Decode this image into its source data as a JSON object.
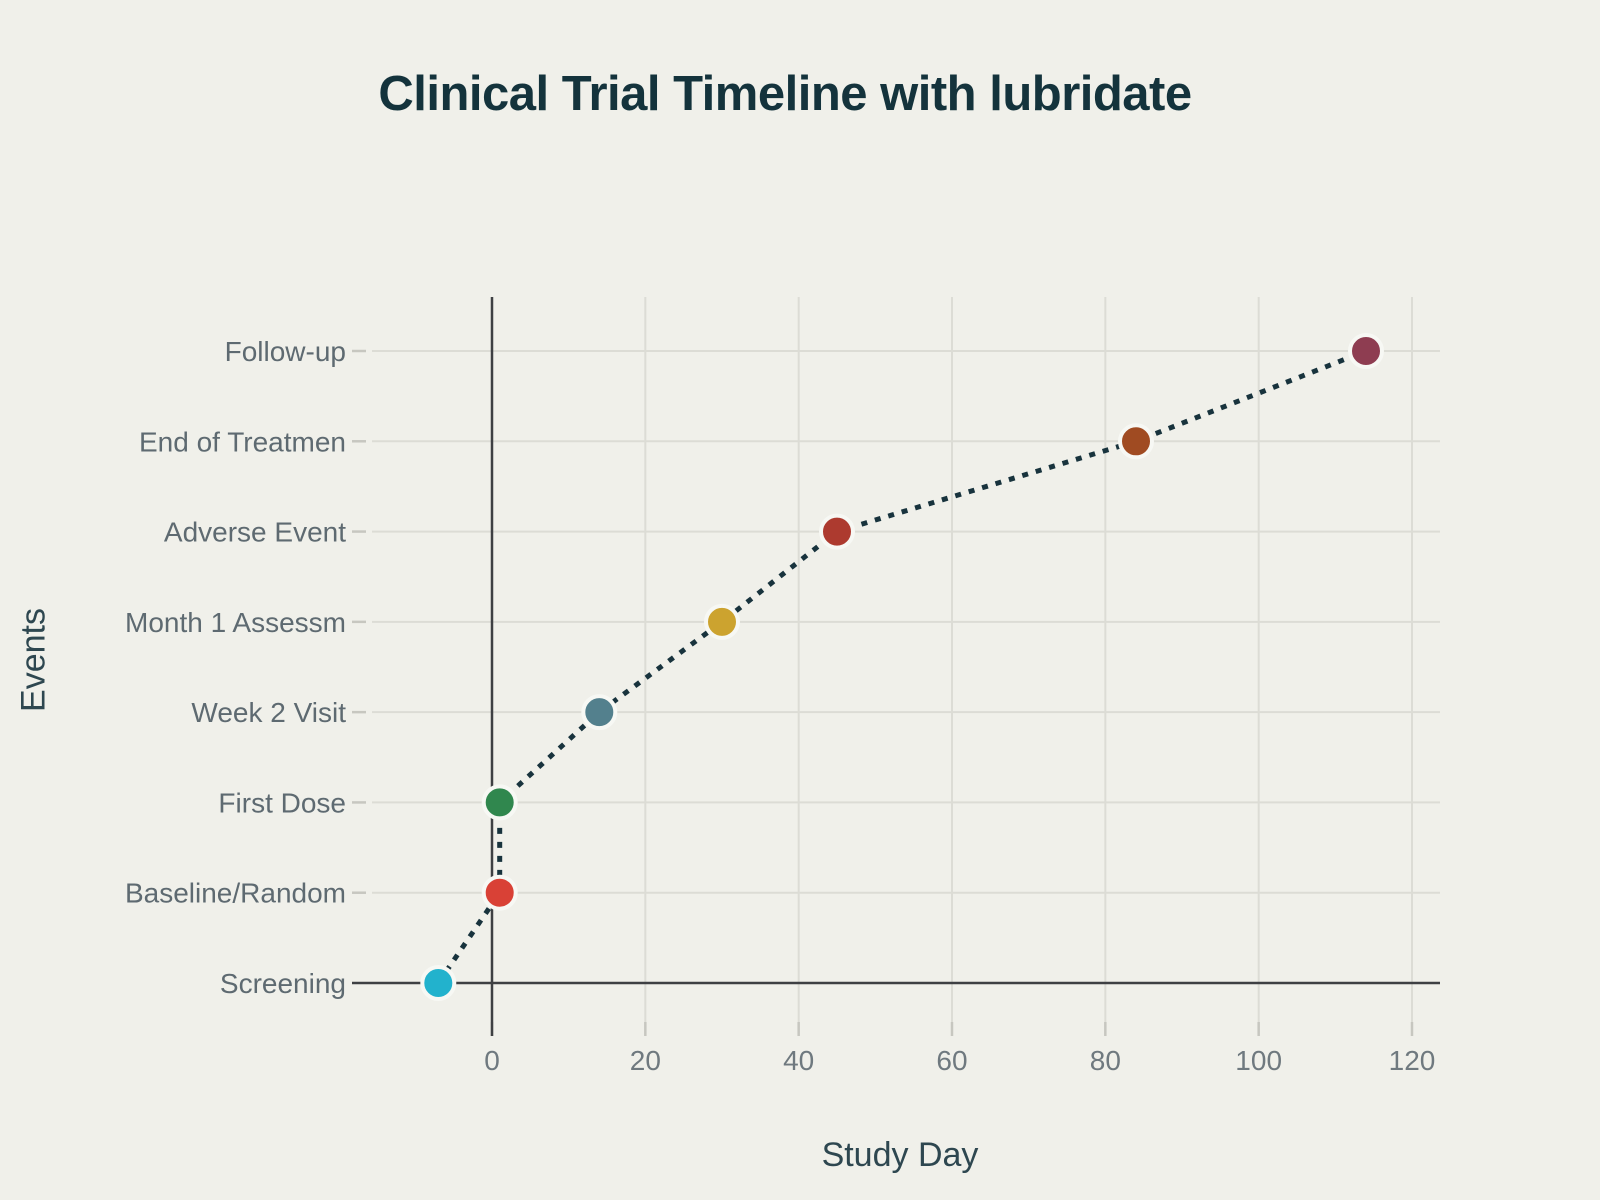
{
  "title": "Clinical Trial Timeline with lubridate",
  "chart_data": {
    "type": "scatter",
    "title": "Clinical Trial Timeline with lubridate",
    "xlabel": "Study Day",
    "ylabel": "Events",
    "x_ticks": [
      0,
      20,
      40,
      60,
      80,
      100,
      120
    ],
    "xlim": [
      -17.2,
      123.6
    ],
    "grid": true,
    "legend": "none",
    "categories_bottom_to_top": [
      "Screening",
      "Baseline/Random",
      "First Dose",
      "Week 2 Visit",
      "Month 1 Assessm",
      "Adverse Event",
      "End of Treatmen",
      "Follow-up"
    ],
    "points": [
      {
        "event": "Screening",
        "day": -7,
        "color": "#22b2cd"
      },
      {
        "event": "Baseline/Random",
        "day": 1,
        "color": "#d94136"
      },
      {
        "event": "First Dose",
        "day": 1,
        "color": "#30874e"
      },
      {
        "event": "Week 2 Visit",
        "day": 14,
        "color": "#53808d"
      },
      {
        "event": "Month 1 Assessm",
        "day": 30,
        "color": "#cca32f"
      },
      {
        "event": "Adverse Event",
        "day": 45,
        "color": "#ad3a2f"
      },
      {
        "event": "End of Treatmen",
        "day": 84,
        "color": "#a04b22"
      },
      {
        "event": "Follow-up",
        "day": 114,
        "color": "#8e3d51"
      }
    ],
    "line": {
      "style": "dotted",
      "color": "#18333d"
    },
    "axis_lines": {
      "vertical_at_day": 0,
      "horizontal_at_event": "Screening",
      "color": "#3e4043"
    },
    "style": {
      "background": "#f0f0ea",
      "gridline": "#dcdcd5",
      "tick_mark": "#c7c7c0",
      "point_ring": "#f7f8f4",
      "title_color": "#14333c",
      "axis_title_color": "#2e4750",
      "y_label_color": "#5e6a71",
      "x_label_color": "#6f797f"
    }
  }
}
